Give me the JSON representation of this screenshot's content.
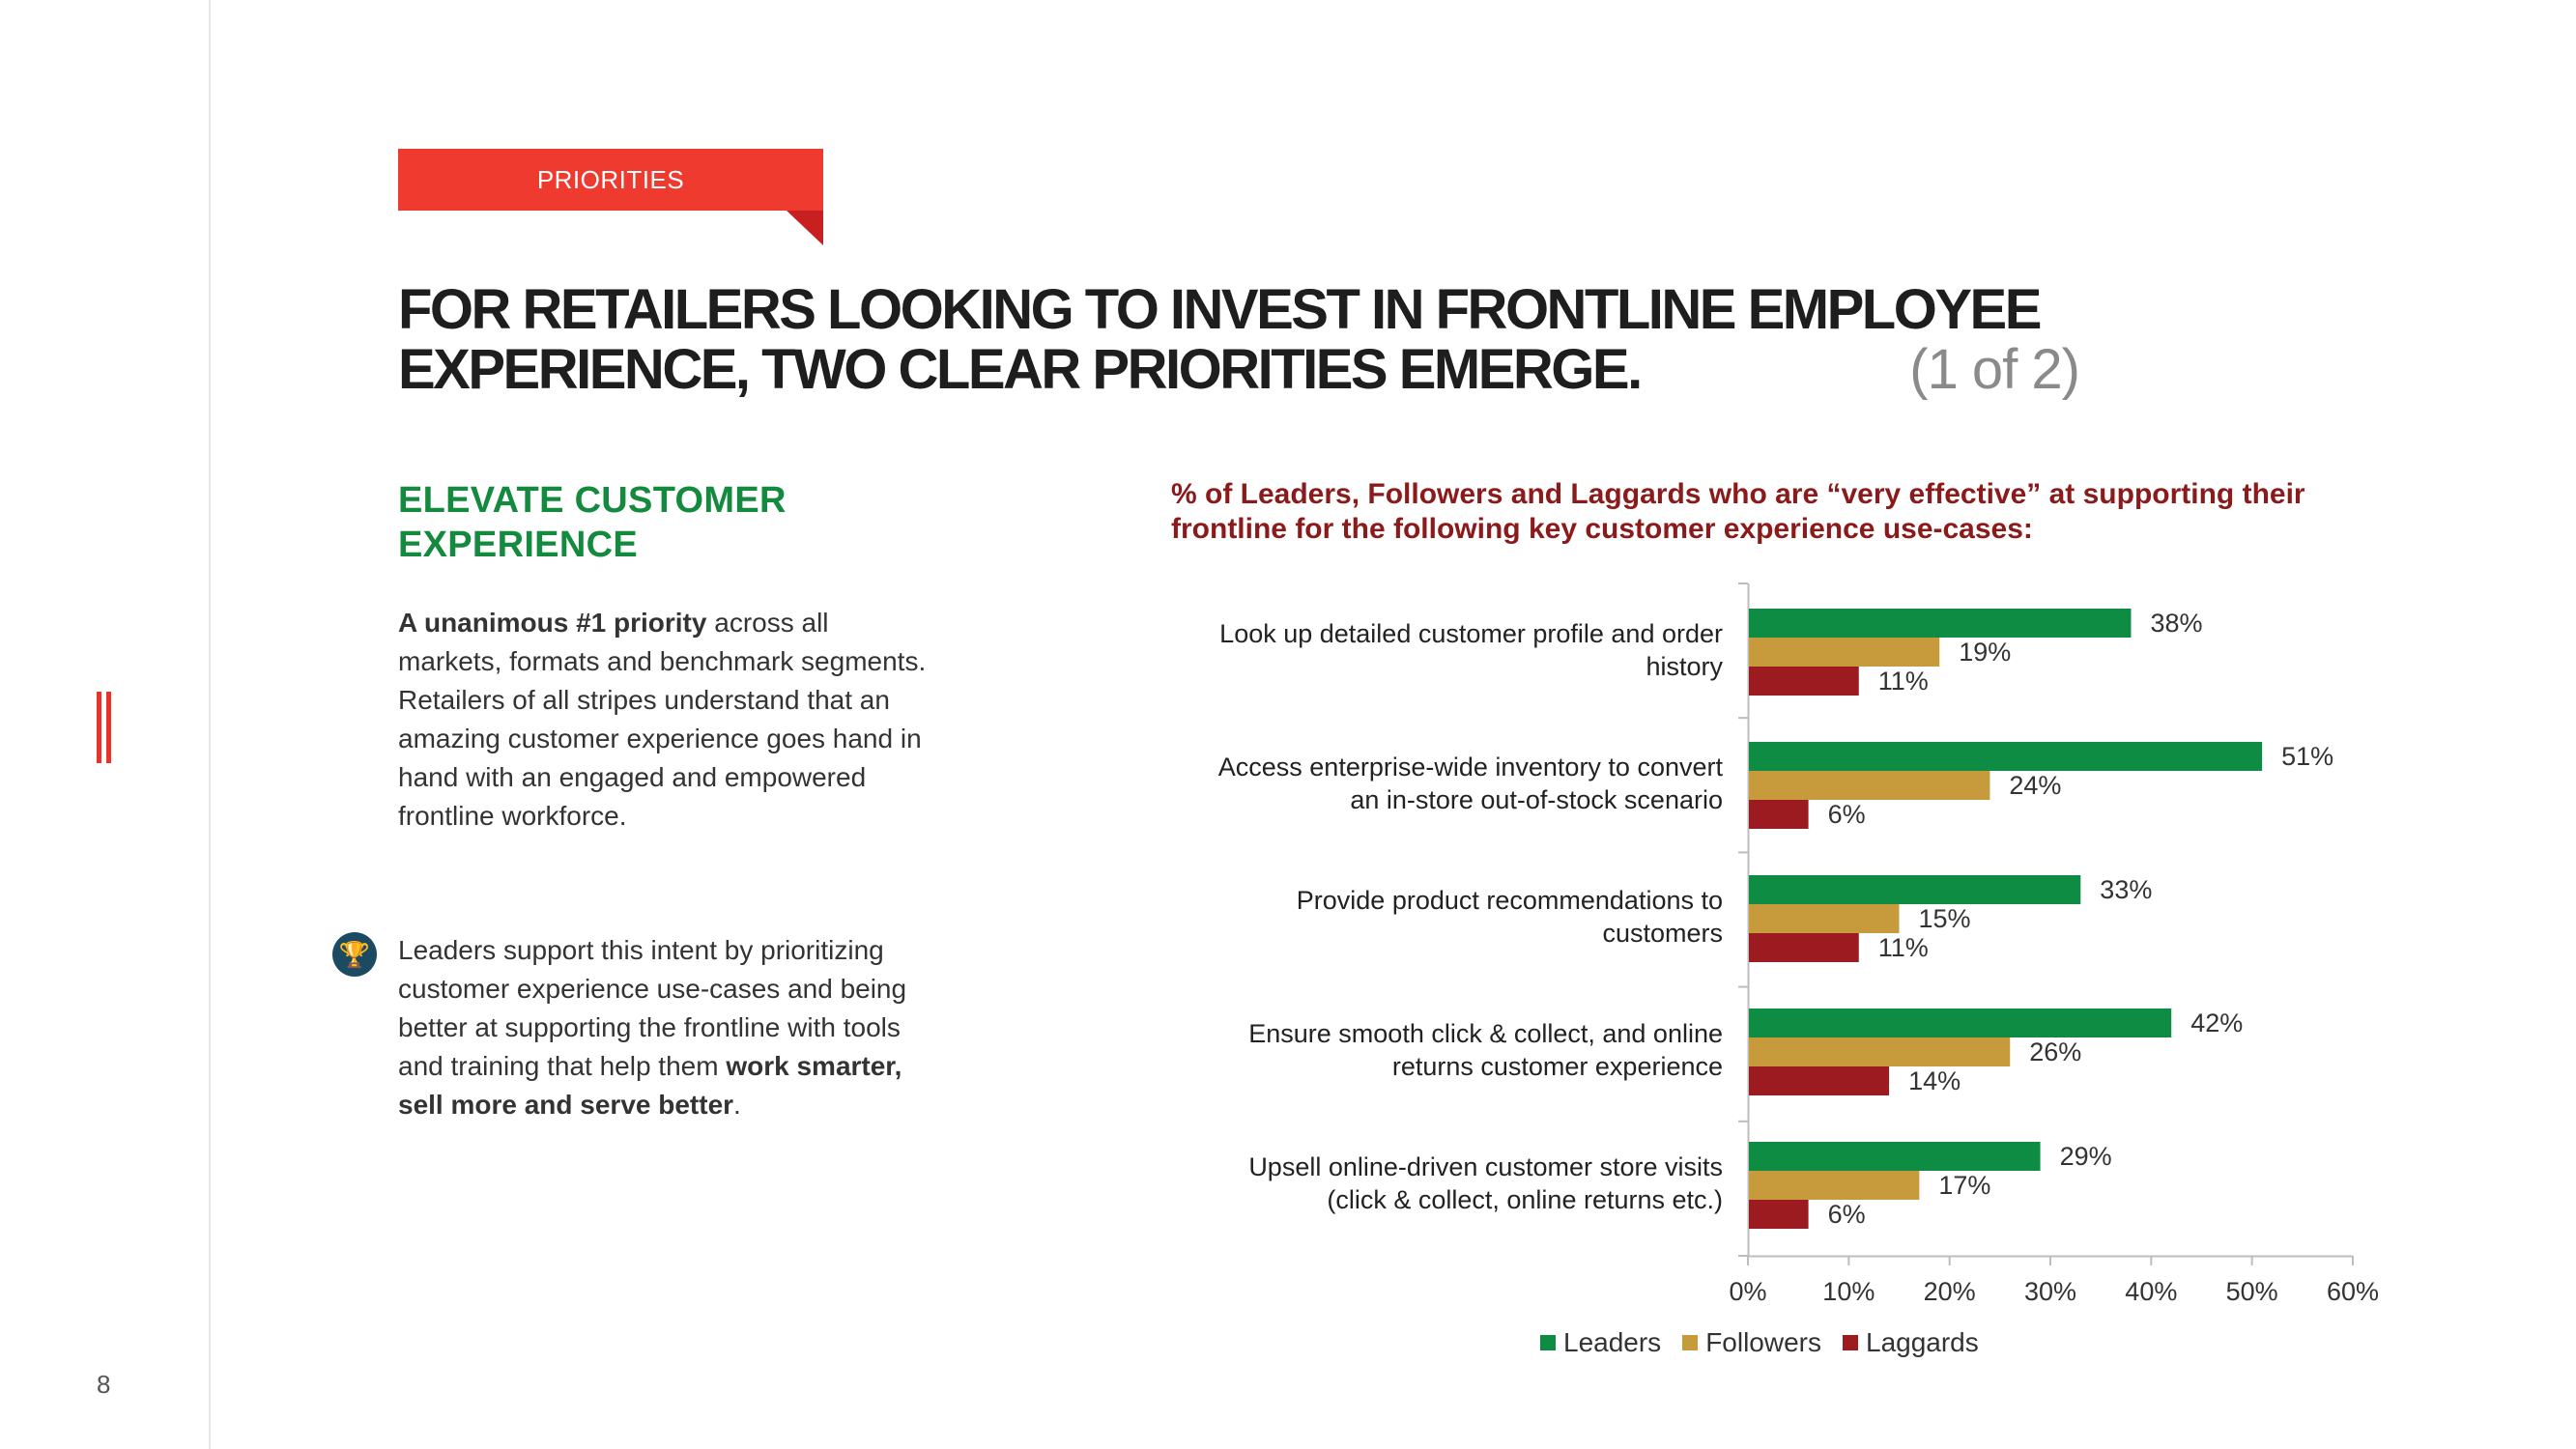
{
  "page": {
    "number": "8"
  },
  "tag": {
    "label": "PRIORITIES"
  },
  "headline": {
    "line1": "FOR RETAILERS LOOKING TO INVEST IN FRONTLINE EMPLOYEE",
    "line2": "EXPERIENCE, TWO CLEAR PRIORITIES EMERGE.",
    "suffix": "(1 of 2)"
  },
  "left": {
    "section_title": "ELEVATE CUSTOMER EXPERIENCE",
    "para1_bold": "A unanimous #1 priority",
    "para1_rest": " across all markets, formats and benchmark segments. Retailers of all stripes understand that an amazing customer experience goes hand in hand with an engaged and empowered frontline workforce.",
    "para2_start": "Leaders support this intent by prioritizing customer experience use-cases and being better at supporting the frontline with tools and training that help them ",
    "para2_bold": "work smarter, sell more and serve better",
    "para2_end": "."
  },
  "icons": {
    "trophy": "trophy-icon"
  },
  "colors": {
    "leaders": "#0e8c43",
    "followers": "#c79a3c",
    "laggards": "#9b1b20",
    "accent": "#ee3a2f"
  },
  "chart_data": {
    "type": "bar",
    "orientation": "horizontal",
    "title": "% of Leaders, Followers and Laggards who are “very effective” at supporting their frontline for the following key customer experience use-cases:",
    "categories": [
      [
        "Look up detailed customer profile and order",
        "history"
      ],
      [
        "Access enterprise-wide inventory to convert",
        "an in-store out-of-stock scenario"
      ],
      [
        "Provide product recommendations to",
        "customers"
      ],
      [
        "Ensure smooth click & collect, and online",
        "returns customer experience"
      ],
      [
        "Upsell online-driven customer store visits",
        "(click & collect, online returns etc.)"
      ]
    ],
    "series": [
      {
        "name": "Leaders",
        "values": [
          38,
          51,
          33,
          42,
          29
        ]
      },
      {
        "name": "Followers",
        "values": [
          19,
          24,
          15,
          26,
          17
        ]
      },
      {
        "name": "Laggards",
        "values": [
          11,
          6,
          11,
          14,
          6
        ]
      }
    ],
    "xlim": [
      0,
      60
    ],
    "xticks": [
      0,
      10,
      20,
      30,
      40,
      50,
      60
    ],
    "tick_format": "%",
    "legend": "bottom"
  }
}
